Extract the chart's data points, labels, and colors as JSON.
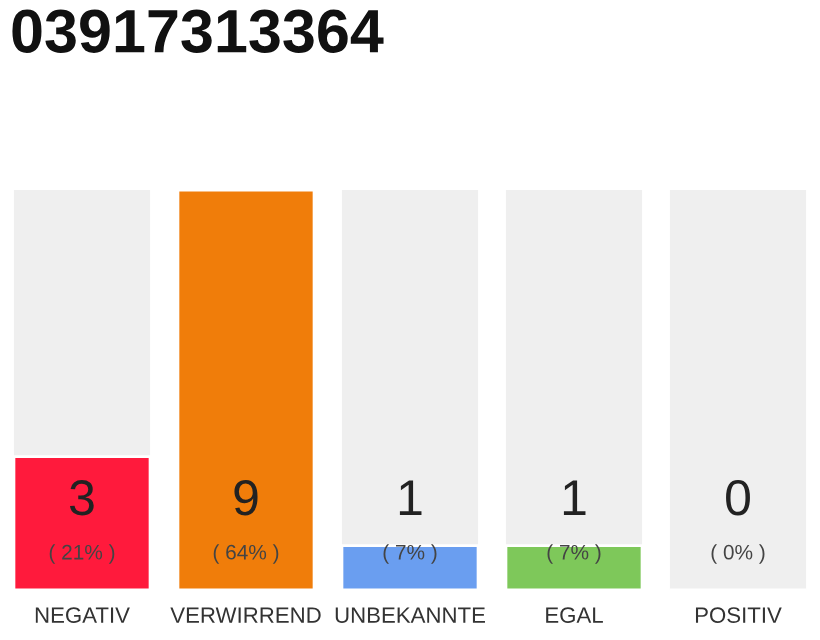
{
  "chart_data": {
    "type": "bar",
    "title": "03917313364",
    "categories": [
      "NEGATIV",
      "VERWIRREND",
      "UNBEKANNTE",
      "EGAL",
      "POSITIV"
    ],
    "values": [
      3,
      9,
      1,
      1,
      0
    ],
    "colors": [
      "#ff1a3c",
      "#f07d0a",
      "#6a9ef0",
      "#7ec85a",
      null
    ],
    "value_labels": [
      "3\n( 21% )",
      "9\n( 64% )",
      "1\n( 7% )",
      "1\n( 7% )",
      "0\n( 0% )"
    ],
    "ylim": [
      0,
      9
    ],
    "grid": false,
    "legend": false
  }
}
